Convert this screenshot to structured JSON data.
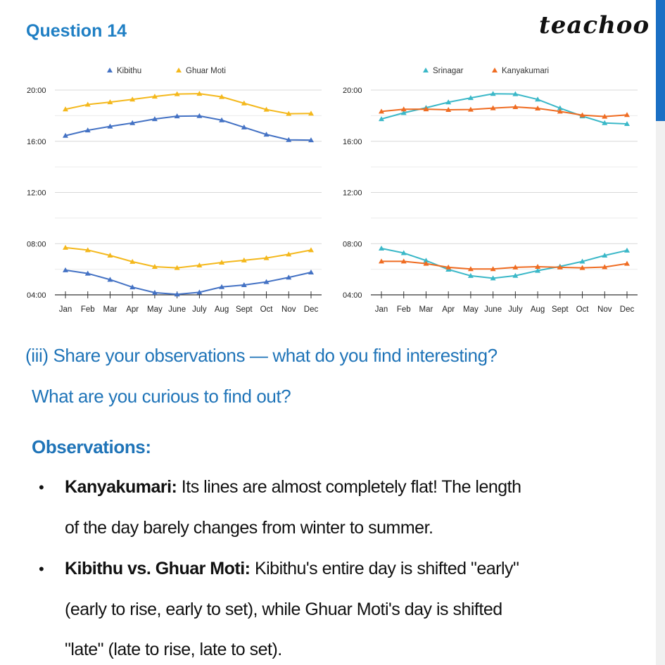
{
  "header": {
    "question": "Question 14",
    "logo": "teachoo"
  },
  "colors": {
    "accent": "#1f74b8",
    "kibithu": "#4472c4",
    "ghuar_moti": "#f4b81c",
    "srinagar": "#3bb8c8",
    "kanyakumari": "#ef6c22"
  },
  "chart_data": [
    {
      "type": "line",
      "xlabel": "",
      "ylabel": "",
      "y_unit": "hours (time of day)",
      "categories": [
        "Jan",
        "Feb",
        "Mar",
        "Apr",
        "May",
        "June",
        "July",
        "Aug",
        "Sept",
        "Oct",
        "Nov",
        "Dec"
      ],
      "yticks": [
        "04:00",
        "08:00",
        "12:00",
        "16:00",
        "20:00"
      ],
      "ylim": [
        4,
        20
      ],
      "grid": true,
      "legend": "top",
      "legend_entries": [
        "Kibithu",
        "Ghuar Moti"
      ],
      "series": [
        {
          "name": "Kibithu",
          "group": "sunset",
          "color": "#4472c4",
          "values": [
            16.44,
            16.86,
            17.16,
            17.43,
            17.74,
            17.96,
            17.98,
            17.65,
            17.09,
            16.53,
            16.11,
            16.09
          ]
        },
        {
          "name": "Kibithu",
          "group": "sunrise",
          "color": "#4472c4",
          "values": [
            5.93,
            5.67,
            5.19,
            4.6,
            4.17,
            4.04,
            4.2,
            4.62,
            4.77,
            5.01,
            5.36,
            5.76
          ]
        },
        {
          "name": "Ghuar Moti",
          "group": "sunset",
          "color": "#f4b81c",
          "values": [
            18.5,
            18.87,
            19.06,
            19.27,
            19.5,
            19.69,
            19.72,
            19.47,
            18.97,
            18.48,
            18.15,
            18.17
          ]
        },
        {
          "name": "Ghuar Moti",
          "group": "sunrise",
          "color": "#f4b81c",
          "values": [
            7.69,
            7.5,
            7.08,
            6.59,
            6.2,
            6.11,
            6.31,
            6.53,
            6.7,
            6.88,
            7.17,
            7.5
          ]
        }
      ]
    },
    {
      "type": "line",
      "xlabel": "",
      "ylabel": "",
      "y_unit": "hours (time of day)",
      "categories": [
        "Jan",
        "Feb",
        "Mar",
        "Apr",
        "May",
        "June",
        "July",
        "Aug",
        "Sept",
        "Oct",
        "Nov",
        "Dec"
      ],
      "yticks": [
        "04:00",
        "08:00",
        "12:00",
        "16:00",
        "20:00"
      ],
      "ylim": [
        4,
        20
      ],
      "grid": true,
      "legend": "top",
      "legend_entries": [
        "Srinagar",
        "Kanyakumari"
      ],
      "series": [
        {
          "name": "Srinagar",
          "group": "sunset",
          "color": "#3bb8c8",
          "values": [
            17.74,
            18.22,
            18.62,
            19.05,
            19.39,
            19.71,
            19.69,
            19.27,
            18.59,
            17.96,
            17.43,
            17.36
          ]
        },
        {
          "name": "Srinagar",
          "group": "sunrise",
          "color": "#3bb8c8",
          "values": [
            7.63,
            7.27,
            6.68,
            5.98,
            5.49,
            5.3,
            5.5,
            5.89,
            6.22,
            6.61,
            7.08,
            7.47
          ]
        },
        {
          "name": "Kanyakumari",
          "group": "sunset",
          "color": "#ef6c22",
          "values": [
            18.33,
            18.5,
            18.51,
            18.46,
            18.48,
            18.59,
            18.68,
            18.57,
            18.33,
            18.04,
            17.93,
            18.06
          ]
        },
        {
          "name": "Kanyakumari",
          "group": "sunrise",
          "color": "#ef6c22",
          "values": [
            6.62,
            6.62,
            6.44,
            6.15,
            6.02,
            6.02,
            6.15,
            6.2,
            6.15,
            6.11,
            6.17,
            6.44
          ]
        }
      ]
    }
  ],
  "content": {
    "prompt_line1": "(iii) Share your observations — what do you find interesting?",
    "prompt_line2": "What are you curious to find out?",
    "observations_heading": "Observations:",
    "bullets": [
      {
        "label": "Kanyakumari:",
        "lines": [
          " Its lines are almost completely flat! The length",
          "of the day barely changes from winter to summer."
        ]
      },
      {
        "label": "Kibithu vs. Ghuar Moti:",
        "lines": [
          " Kibithu's entire day is shifted \"early\"",
          "(early to rise, early to set), while Ghuar Moti's day is shifted",
          "\"late\" (late to rise, late to set)."
        ]
      }
    ]
  }
}
